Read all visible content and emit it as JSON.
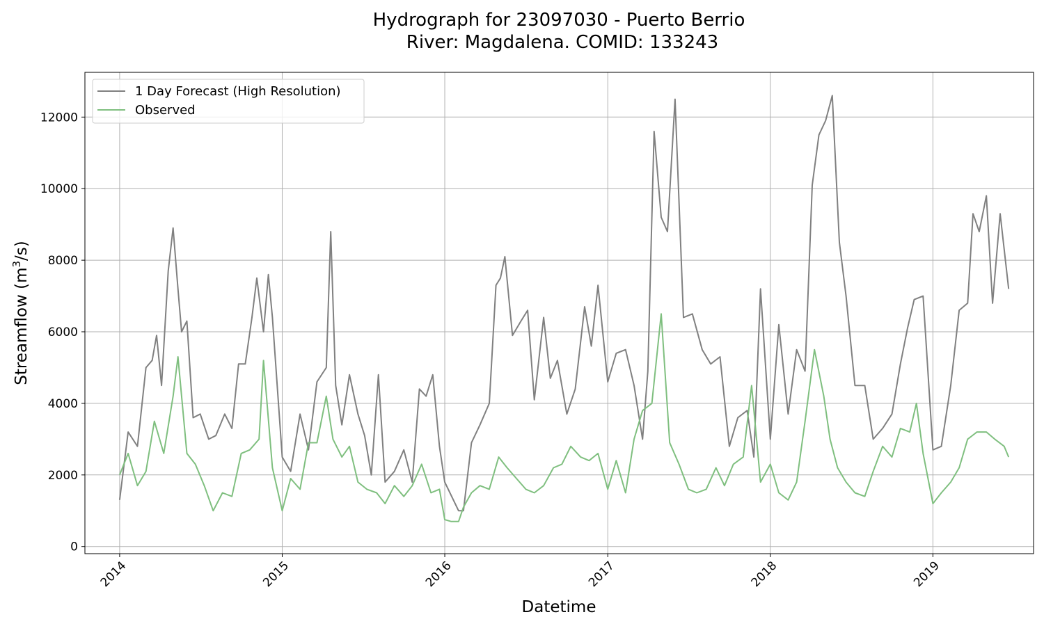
{
  "chart_data": {
    "type": "line",
    "title_line1": "Hydrograph for 23097030 - Puerto Berrio",
    "title_line2": "River: Magdalena. COMID: 133243",
    "xlabel": "Datetime",
    "ylabel_main": "Streamflow (m",
    "ylabel_sup": "3",
    "ylabel_tail": "/s)",
    "x_range": [
      "2013-10-15",
      "2019-08-15"
    ],
    "ylim": [
      -200,
      13250
    ],
    "grid": true,
    "legend_position": "upper-left",
    "x_ticks": [
      {
        "date": "2014-01-01",
        "label": "2014"
      },
      {
        "date": "2015-01-01",
        "label": "2015"
      },
      {
        "date": "2016-01-01",
        "label": "2016"
      },
      {
        "date": "2017-01-01",
        "label": "2017"
      },
      {
        "date": "2018-01-01",
        "label": "2018"
      },
      {
        "date": "2019-01-01",
        "label": "2019"
      }
    ],
    "y_ticks": [
      {
        "value": 0,
        "label": "0"
      },
      {
        "value": 2000,
        "label": "2000"
      },
      {
        "value": 4000,
        "label": "4000"
      },
      {
        "value": 6000,
        "label": "6000"
      },
      {
        "value": 8000,
        "label": "8000"
      },
      {
        "value": 10000,
        "label": "10000"
      },
      {
        "value": 12000,
        "label": "12000"
      }
    ],
    "series": [
      {
        "name": "1 Day Forecast (High Resolution)",
        "color": "#808080",
        "x": [
          "2014-01-01",
          "2014-01-20",
          "2014-02-10",
          "2014-03-01",
          "2014-03-15",
          "2014-03-25",
          "2014-04-05",
          "2014-04-20",
          "2014-05-01",
          "2014-05-12",
          "2014-05-20",
          "2014-06-01",
          "2014-06-15",
          "2014-07-01",
          "2014-07-20",
          "2014-08-05",
          "2014-08-25",
          "2014-09-10",
          "2014-09-25",
          "2014-10-10",
          "2014-10-25",
          "2014-11-05",
          "2014-11-20",
          "2014-12-01",
          "2014-12-10",
          "2015-01-01",
          "2015-01-20",
          "2015-02-10",
          "2015-03-01",
          "2015-03-20",
          "2015-04-10",
          "2015-04-20",
          "2015-05-01",
          "2015-05-15",
          "2015-06-01",
          "2015-06-20",
          "2015-07-05",
          "2015-07-20",
          "2015-08-05",
          "2015-08-20",
          "2015-09-10",
          "2015-10-01",
          "2015-10-20",
          "2015-11-05",
          "2015-11-20",
          "2015-12-05",
          "2015-12-20",
          "2016-01-01",
          "2016-02-01",
          "2016-02-12",
          "2016-03-01",
          "2016-03-20",
          "2016-04-10",
          "2016-04-25",
          "2016-05-05",
          "2016-05-15",
          "2016-06-01",
          "2016-06-20",
          "2016-07-05",
          "2016-07-20",
          "2016-08-10",
          "2016-08-25",
          "2016-09-10",
          "2016-10-01",
          "2016-10-20",
          "2016-11-10",
          "2016-11-25",
          "2016-12-10",
          "2017-01-01",
          "2017-01-20",
          "2017-02-10",
          "2017-03-01",
          "2017-03-20",
          "2017-04-01",
          "2017-04-15",
          "2017-05-01",
          "2017-05-15",
          "2017-06-01",
          "2017-06-20",
          "2017-07-10",
          "2017-08-01",
          "2017-08-20",
          "2017-09-10",
          "2017-10-01",
          "2017-10-20",
          "2017-11-10",
          "2017-11-25",
          "2017-12-10",
          "2018-01-01",
          "2018-01-20",
          "2018-02-10",
          "2018-03-01",
          "2018-03-20",
          "2018-04-05",
          "2018-04-20",
          "2018-05-05",
          "2018-05-20",
          "2018-06-05",
          "2018-06-20",
          "2018-07-10",
          "2018-08-01",
          "2018-08-20",
          "2018-09-10",
          "2018-10-01",
          "2018-10-20",
          "2018-11-05",
          "2018-11-20",
          "2018-12-10",
          "2019-01-01",
          "2019-01-20",
          "2019-02-10",
          "2019-03-01",
          "2019-03-20",
          "2019-04-01",
          "2019-04-15",
          "2019-05-01",
          "2019-05-15",
          "2019-06-01",
          "2019-06-20"
        ],
        "y": [
          1300,
          3200,
          2800,
          5000,
          5200,
          5900,
          4500,
          7700,
          8900,
          7200,
          6000,
          6300,
          3600,
          3700,
          3000,
          3100,
          3700,
          3300,
          5100,
          5100,
          6400,
          7500,
          6000,
          7600,
          6400,
          2500,
          2100,
          3700,
          2700,
          4600,
          5000,
          8800,
          4500,
          3400,
          4800,
          3700,
          3100,
          2000,
          4800,
          1800,
          2100,
          2700,
          1800,
          4400,
          4200,
          4800,
          2800,
          1800,
          1000,
          1000,
          2900,
          3400,
          4000,
          7300,
          7500,
          8100,
          5900,
          6300,
          6600,
          4100,
          6400,
          4700,
          5200,
          3700,
          4400,
          6700,
          5600,
          7300,
          4600,
          5400,
          5500,
          4500,
          3000,
          4900,
          11600,
          9200,
          8800,
          12500,
          6400,
          6500,
          5500,
          5100,
          5300,
          2800,
          3600,
          3800,
          2500,
          7200,
          3000,
          6200,
          3700,
          5500,
          4900,
          10100,
          11500,
          11900,
          12600,
          8500,
          7000,
          4500,
          4500,
          3000,
          3300,
          3700,
          5100,
          6100,
          6900,
          7000,
          2700,
          2800,
          4500,
          6600,
          6800,
          9300,
          8800,
          9800,
          6800,
          9300,
          7200
        ]
      },
      {
        "name": "Observed",
        "color": "#7fbf7f",
        "x": [
          "2014-01-01",
          "2014-01-20",
          "2014-02-10",
          "2014-03-01",
          "2014-03-20",
          "2014-04-10",
          "2014-05-01",
          "2014-05-12",
          "2014-06-01",
          "2014-06-20",
          "2014-07-10",
          "2014-07-30",
          "2014-08-20",
          "2014-09-10",
          "2014-10-01",
          "2014-10-20",
          "2014-11-10",
          "2014-11-20",
          "2014-12-10",
          "2015-01-01",
          "2015-01-20",
          "2015-02-10",
          "2015-03-01",
          "2015-03-20",
          "2015-04-10",
          "2015-04-25",
          "2015-05-15",
          "2015-06-01",
          "2015-06-20",
          "2015-07-10",
          "2015-08-01",
          "2015-08-20",
          "2015-09-10",
          "2015-10-01",
          "2015-10-20",
          "2015-11-10",
          "2015-12-01",
          "2015-12-20",
          "2016-01-01",
          "2016-01-15",
          "2016-02-01",
          "2016-02-12",
          "2016-03-01",
          "2016-03-20",
          "2016-04-10",
          "2016-05-01",
          "2016-05-20",
          "2016-06-10",
          "2016-07-01",
          "2016-07-20",
          "2016-08-10",
          "2016-09-01",
          "2016-09-20",
          "2016-10-10",
          "2016-11-01",
          "2016-11-20",
          "2016-12-10",
          "2017-01-01",
          "2017-01-20",
          "2017-02-10",
          "2017-03-01",
          "2017-03-20",
          "2017-04-10",
          "2017-05-01",
          "2017-05-20",
          "2017-06-10",
          "2017-07-01",
          "2017-07-20",
          "2017-08-10",
          "2017-09-01",
          "2017-09-20",
          "2017-10-10",
          "2017-11-01",
          "2017-11-20",
          "2017-12-10",
          "2018-01-01",
          "2018-01-20",
          "2018-02-10",
          "2018-03-01",
          "2018-03-20",
          "2018-04-10",
          "2018-05-01",
          "2018-05-15",
          "2018-06-01",
          "2018-06-20",
          "2018-07-10",
          "2018-08-01",
          "2018-08-20",
          "2018-09-10",
          "2018-10-01",
          "2018-10-20",
          "2018-11-10",
          "2018-11-25",
          "2018-12-10",
          "2019-01-01",
          "2019-01-20",
          "2019-02-10",
          "2019-03-01",
          "2019-03-20",
          "2019-04-10",
          "2019-05-01",
          "2019-05-20",
          "2019-06-10",
          "2019-06-20"
        ],
        "y": [
          2000,
          2600,
          1700,
          2100,
          3500,
          2600,
          4200,
          5300,
          2600,
          2300,
          1700,
          1000,
          1500,
          1400,
          2600,
          2700,
          3000,
          5200,
          2200,
          1000,
          1900,
          1600,
          2900,
          2900,
          4200,
          3000,
          2500,
          2800,
          1800,
          1600,
          1500,
          1200,
          1700,
          1400,
          1700,
          2300,
          1500,
          1600,
          750,
          700,
          700,
          1100,
          1500,
          1700,
          1600,
          2500,
          2200,
          1900,
          1600,
          1500,
          1700,
          2200,
          2300,
          2800,
          2500,
          2400,
          2600,
          1600,
          2400,
          1500,
          3000,
          3800,
          4000,
          6500,
          2900,
          2300,
          1600,
          1500,
          1600,
          2200,
          1700,
          2300,
          2500,
          4500,
          1800,
          2300,
          1500,
          1300,
          1800,
          3500,
          5500,
          4200,
          3000,
          2200,
          1800,
          1500,
          1400,
          2100,
          2800,
          2500,
          3300,
          3200,
          4000,
          2600,
          1200,
          1500,
          1800,
          2200,
          3000,
          3200,
          3200,
          3000,
          2800,
          2500
        ]
      }
    ]
  }
}
